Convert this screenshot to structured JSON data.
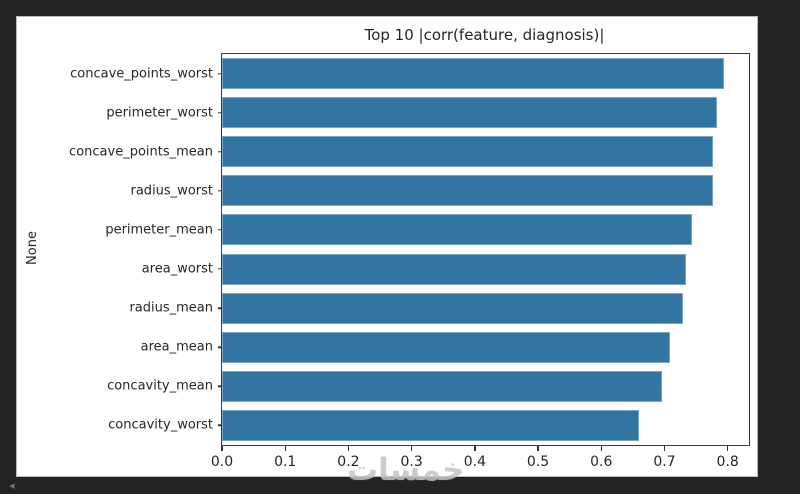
{
  "page": {
    "background_color": "#232323",
    "figure_background": "#ffffff"
  },
  "watermark": {
    "text": "خمسات"
  },
  "corner_arrow_glyph": "◂",
  "chart_data": {
    "type": "bar",
    "orientation": "horizontal",
    "title": "Top 10 |corr(feature, diagnosis)|",
    "xlabel": "",
    "ylabel": "None",
    "categories": [
      "concave_points_worst",
      "perimeter_worst",
      "concave_points_mean",
      "radius_worst",
      "perimeter_mean",
      "area_worst",
      "radius_mean",
      "area_mean",
      "concavity_mean",
      "concavity_worst"
    ],
    "values": [
      0.794,
      0.783,
      0.777,
      0.776,
      0.743,
      0.734,
      0.73,
      0.709,
      0.696,
      0.66
    ],
    "xlim": [
      0,
      0.8337
    ],
    "xticks": [
      0.0,
      0.1,
      0.2,
      0.3,
      0.4,
      0.5,
      0.6,
      0.7,
      0.8
    ],
    "xtick_labels": [
      "0.0",
      "0.1",
      "0.2",
      "0.3",
      "0.4",
      "0.5",
      "0.6",
      "0.7",
      "0.8"
    ],
    "bar_color": "#3274a1",
    "grid": false,
    "legend": null
  }
}
